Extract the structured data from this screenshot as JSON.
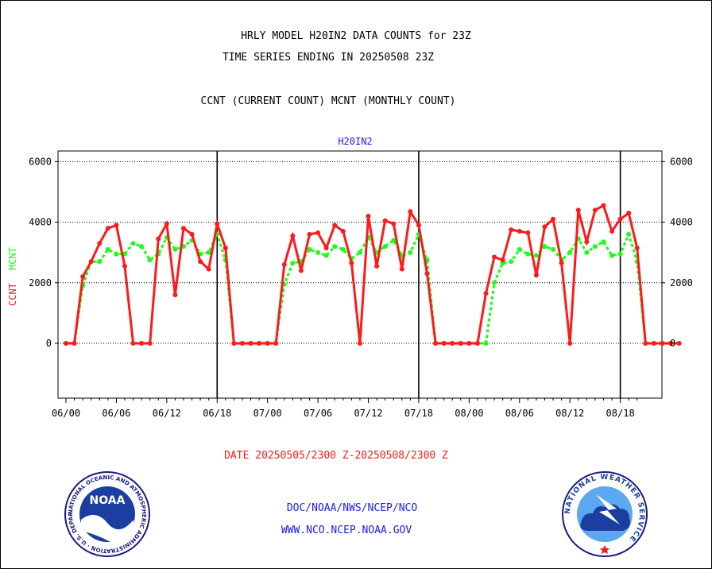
{
  "header": {
    "title_line1": "HRLY MODEL H20IN2 DATA COUNTS for 23Z",
    "title_line2": "TIME SERIES ENDING IN 20250508 23Z",
    "subtitle": "CCNT (CURRENT COUNT) MCNT (MONTHLY COUNT)"
  },
  "footer": {
    "date_range": "DATE 20250505/2300 Z-20250508/2300 Z",
    "doc_line": "DOC/NOAA/NWS/NCEP/NCO",
    "web_line": "WWW.NCO.NCEP.NOAA.GOV"
  },
  "logos": {
    "noaa_text": "NOAA",
    "noaa_ring_text": "NATIONAL OCEANIC AND ATMOSPHERIC ADMINISTRATION · U.S. DEPARTMENT OF COMMERCE",
    "nws_ring_text": "NATIONAL WEATHER SERVICE"
  },
  "chart_data": {
    "type": "line",
    "title": "H20IN2",
    "ylabel_left_series1": "CCNT",
    "ylabel_left_series2": "MCNT",
    "ylim": [
      -1800,
      6300
    ],
    "yticks": [
      0,
      2000,
      4000,
      6000
    ],
    "xlim": [
      -1,
      69
    ],
    "xticks": [
      {
        "x": 0,
        "label": "06/00"
      },
      {
        "x": 6,
        "label": "06/06"
      },
      {
        "x": 12,
        "label": "06/12"
      },
      {
        "x": 18,
        "label": "06/18"
      },
      {
        "x": 24,
        "label": "07/00"
      },
      {
        "x": 30,
        "label": "07/06"
      },
      {
        "x": 36,
        "label": "07/12"
      },
      {
        "x": 42,
        "label": "07/18"
      },
      {
        "x": 48,
        "label": "08/00"
      },
      {
        "x": 54,
        "label": "08/06"
      },
      {
        "x": 60,
        "label": "08/12"
      },
      {
        "x": 66,
        "label": "08/18"
      }
    ],
    "day_dividers": [
      18,
      42,
      66
    ],
    "grid": "horizontal dotted",
    "colors": {
      "ccnt": "#ff1a1a",
      "mcnt": "#1aff1a",
      "axis": "#000000",
      "station": "#1a1aff"
    },
    "series": [
      {
        "name": "CCNT",
        "values": [
          0,
          0,
          2200,
          2700,
          3300,
          3800,
          3900,
          2550,
          0,
          0,
          0,
          3450,
          3950,
          1600,
          3800,
          3600,
          2700,
          2450,
          3950,
          3150,
          0,
          0,
          0,
          0,
          0,
          0,
          2600,
          3550,
          2400,
          3600,
          3650,
          3150,
          3900,
          3700,
          2650,
          0,
          4200,
          2550,
          4050,
          3950,
          2450,
          4350,
          3900,
          2300,
          0,
          0,
          0,
          0,
          0,
          0,
          1650,
          2850,
          2750,
          3750,
          3700,
          3650,
          2250,
          3850,
          4100,
          2650,
          0,
          4400,
          3350,
          4400,
          4550,
          3700,
          4100,
          4300,
          3150,
          0,
          0,
          0,
          0,
          0
        ]
      },
      {
        "name": "MCNT",
        "values": [
          0,
          0,
          1900,
          2700,
          2700,
          3100,
          2950,
          2950,
          3300,
          3200,
          2750,
          2950,
          3500,
          3100,
          3200,
          3400,
          2950,
          3000,
          3600,
          2750,
          0,
          0,
          0,
          0,
          0,
          0,
          1950,
          2650,
          2700,
          3100,
          3000,
          2900,
          3200,
          3100,
          2800,
          3000,
          3500,
          3000,
          3200,
          3400,
          2900,
          3000,
          3600,
          2750,
          0,
          0,
          0,
          0,
          0,
          0,
          0,
          2000,
          2650,
          2700,
          3100,
          2950,
          2900,
          3200,
          3100,
          2750,
          3000,
          3450,
          3000,
          3200,
          3350,
          2900,
          2950,
          3600,
          2700,
          0,
          0,
          0,
          0,
          0
        ]
      }
    ]
  }
}
